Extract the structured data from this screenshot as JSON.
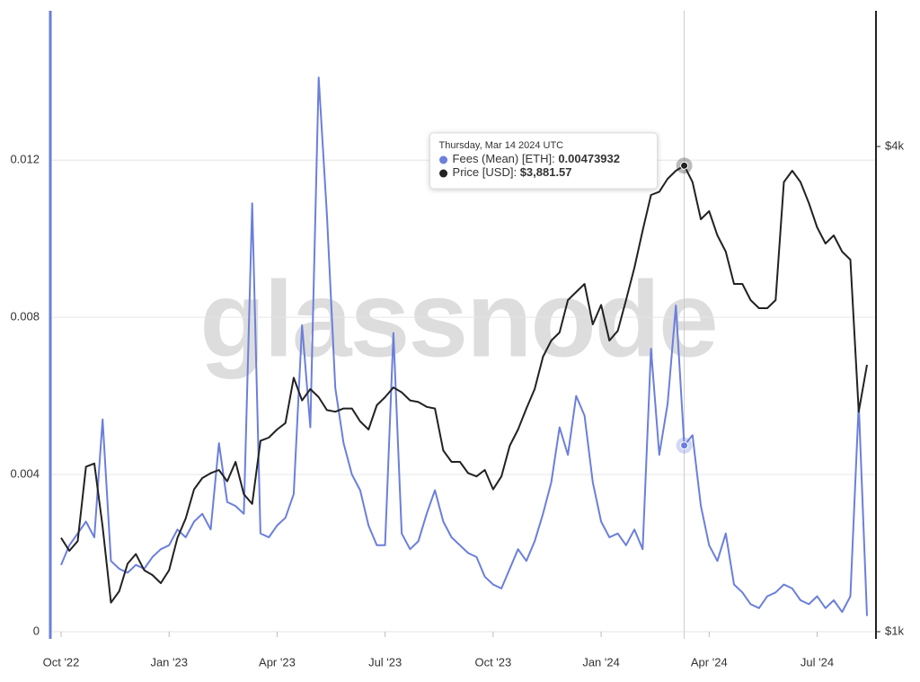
{
  "chart_data": {
    "type": "line",
    "watermark": "glassnode",
    "categories": [
      "Oct '22",
      null,
      null,
      null,
      null,
      null,
      null,
      null,
      null,
      null,
      null,
      null,
      null,
      "Jan '23",
      null,
      null,
      null,
      null,
      null,
      null,
      null,
      null,
      null,
      null,
      null,
      null,
      "Apr '23",
      null,
      null,
      null,
      null,
      null,
      null,
      null,
      null,
      null,
      null,
      null,
      null,
      "Jul '23",
      null,
      null,
      null,
      null,
      null,
      null,
      null,
      null,
      null,
      null,
      null,
      null,
      "Oct '23",
      null,
      null,
      null,
      null,
      null,
      null,
      null,
      null,
      null,
      null,
      null,
      null,
      "Jan '24",
      null,
      null,
      null,
      null,
      null,
      null,
      null,
      null,
      null,
      null,
      null,
      null,
      "Apr '24",
      null,
      null,
      null,
      null,
      null,
      null,
      null,
      null,
      null,
      null,
      null,
      null,
      "Jul '24",
      null,
      null,
      null,
      null,
      null,
      null
    ],
    "series": [
      {
        "name": "Fees (Mean) [ETH]",
        "color": "#6b7fdb",
        "axis": "y",
        "values": [
          0.0017,
          0.0022,
          0.0025,
          0.0028,
          0.0024,
          0.0054,
          0.0018,
          0.0016,
          0.0015,
          0.0017,
          0.0016,
          0.0019,
          0.0021,
          0.0022,
          0.0026,
          0.0024,
          0.0028,
          0.003,
          0.0026,
          0.0048,
          0.0033,
          0.0032,
          0.003,
          0.0109,
          0.0025,
          0.0024,
          0.0027,
          0.0029,
          0.0035,
          0.0078,
          0.0052,
          0.0141,
          0.0106,
          0.0062,
          0.0048,
          0.004,
          0.0036,
          0.0027,
          0.0022,
          0.0022,
          0.0076,
          0.0025,
          0.0021,
          0.0023,
          0.003,
          0.0036,
          0.0028,
          0.0024,
          0.0022,
          0.002,
          0.0019,
          0.0014,
          0.0012,
          0.0011,
          0.0016,
          0.0021,
          0.0018,
          0.0023,
          0.003,
          0.0038,
          0.0052,
          0.0045,
          0.006,
          0.0055,
          0.0038,
          0.0028,
          0.0024,
          0.0025,
          0.0022,
          0.0026,
          0.0021,
          0.0072,
          0.0045,
          0.0058,
          0.0083,
          0.00473932,
          0.005,
          0.0032,
          0.0022,
          0.0018,
          0.0025,
          0.0012,
          0.001,
          0.0007,
          0.0006,
          0.0009,
          0.001,
          0.0012,
          0.0011,
          0.0008,
          0.0007,
          0.0009,
          0.0006,
          0.0008,
          0.0005,
          0.0009,
          0.0058,
          0.0004
        ]
      },
      {
        "name": "Price [USD]",
        "color": "#222222",
        "axis": "y2",
        "values": [
          1580,
          1500,
          1560,
          2020,
          2040,
          1650,
          1180,
          1250,
          1420,
          1480,
          1380,
          1350,
          1300,
          1380,
          1580,
          1700,
          1880,
          1950,
          1980,
          2000,
          1930,
          2050,
          1850,
          1790,
          2180,
          2200,
          2250,
          2290,
          2570,
          2430,
          2500,
          2450,
          2370,
          2360,
          2380,
          2380,
          2300,
          2250,
          2400,
          2450,
          2510,
          2480,
          2430,
          2420,
          2390,
          2380,
          2120,
          2050,
          2050,
          1980,
          1960,
          2000,
          1880,
          1960,
          2150,
          2250,
          2380,
          2500,
          2700,
          2800,
          2850,
          3050,
          3100,
          3150,
          2900,
          3020,
          2800,
          2860,
          3050,
          3250,
          3480,
          3700,
          3720,
          3800,
          3850,
          3881.57,
          3780,
          3550,
          3600,
          3450,
          3350,
          3150,
          3150,
          3050,
          3000,
          3000,
          3050,
          3780,
          3850,
          3780,
          3650,
          3500,
          3400,
          3450,
          3350,
          3300,
          2360,
          2650
        ]
      }
    ],
    "ylim": [
      0,
      0.0158
    ],
    "yticks": [
      0,
      0.004,
      0.008,
      0.012
    ],
    "y2lim": [
      1000,
      4839
    ],
    "y2ticks": [
      {
        "value": 1000,
        "label": "$1k"
      },
      {
        "value": 4000,
        "label": "$4k"
      }
    ],
    "grid": true,
    "tooltip": {
      "title": "Thursday, Mar 14 2024 UTC",
      "separator": ": ",
      "values": [
        0.00473932,
        3881.57
      ],
      "value_labels": [
        "0.00473932",
        "$3,881.57"
      ]
    }
  }
}
